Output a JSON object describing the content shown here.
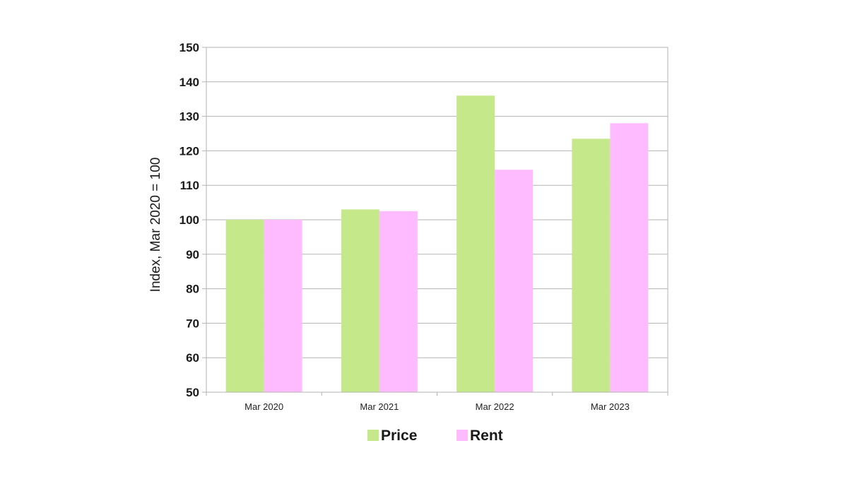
{
  "chart_data": {
    "type": "bar",
    "categories": [
      "Mar 2020",
      "Mar 2021",
      "Mar 2022",
      "Mar 2023"
    ],
    "series": [
      {
        "name": "Price",
        "color": "#c5e88a",
        "values": [
          100,
          103,
          136,
          123.5
        ]
      },
      {
        "name": "Rent",
        "color": "#ffbbff",
        "values": [
          100,
          102.5,
          114.5,
          128
        ]
      }
    ],
    "title": "",
    "xlabel": "",
    "ylabel": "Index, Mar 2020 = 100",
    "ylim": [
      50,
      150
    ],
    "yticks": [
      50,
      60,
      70,
      80,
      90,
      100,
      110,
      120,
      130,
      140,
      150
    ],
    "grid": true,
    "legend_position": "bottom-center"
  }
}
